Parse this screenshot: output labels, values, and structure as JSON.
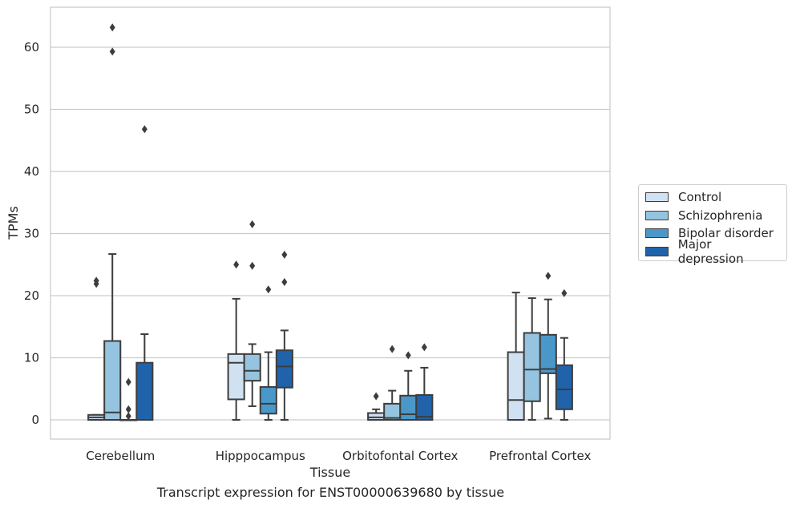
{
  "chart_data": {
    "type": "box",
    "title": "Transcript expression for ENST00000639680 by tissue",
    "xlabel": "Tissue",
    "ylabel": "TPMs",
    "ylim": [
      -3,
      66
    ],
    "yticks": [
      0,
      10,
      20,
      30,
      40,
      50,
      60
    ],
    "grid": "horizontal",
    "legend_position": "right",
    "categories": [
      "Cerebellum",
      "Hipppocampus",
      "Orbitofontal Cortex",
      "Prefrontal Cortex"
    ],
    "series": [
      {
        "name": "Control",
        "color": "#d0e1f2",
        "boxes": [
          {
            "min": 0.0,
            "q1": 0.0,
            "median": 0.4,
            "q3": 0.8,
            "max": 0.8,
            "outliers": [
              22.4,
              21.9
            ]
          },
          {
            "min": 0.0,
            "q1": 3.3,
            "median": 9.2,
            "q3": 10.6,
            "max": 19.5,
            "outliers": [
              25.0
            ]
          },
          {
            "min": 0.0,
            "q1": 0.0,
            "median": 0.4,
            "q3": 1.1,
            "max": 1.7,
            "outliers": [
              3.8
            ]
          },
          {
            "min": 0.0,
            "q1": 0.0,
            "median": 3.2,
            "q3": 10.9,
            "max": 20.5,
            "outliers": []
          }
        ]
      },
      {
        "name": "Schizophrenia",
        "color": "#94c4df",
        "boxes": [
          {
            "min": 0.0,
            "q1": 0.0,
            "median": 1.2,
            "q3": 12.7,
            "max": 26.7,
            "outliers": [
              63.2,
              59.3
            ]
          },
          {
            "min": 2.2,
            "q1": 6.3,
            "median": 7.9,
            "q3": 10.6,
            "max": 12.2,
            "outliers": [
              31.5,
              24.8
            ]
          },
          {
            "min": 0.0,
            "q1": 0.0,
            "median": 0.3,
            "q3": 2.6,
            "max": 4.7,
            "outliers": [
              11.4
            ]
          },
          {
            "min": 0.0,
            "q1": 3.0,
            "median": 8.1,
            "q3": 14.0,
            "max": 19.6,
            "outliers": []
          }
        ]
      },
      {
        "name": "Bipolar disorder",
        "color": "#4a98c9",
        "boxes": [
          {
            "min": 0.0,
            "q1": 0.0,
            "median": 0.0,
            "q3": 0.0,
            "max": 0.0,
            "outliers": [
              6.1,
              1.7,
              0.6
            ]
          },
          {
            "min": 0.0,
            "q1": 1.0,
            "median": 2.6,
            "q3": 5.3,
            "max": 10.9,
            "outliers": [
              21.0
            ]
          },
          {
            "min": 0.0,
            "q1": 0.0,
            "median": 0.9,
            "q3": 3.9,
            "max": 7.9,
            "outliers": [
              10.4
            ]
          },
          {
            "min": 0.2,
            "q1": 7.5,
            "median": 8.2,
            "q3": 13.7,
            "max": 19.4,
            "outliers": [
              23.2
            ]
          }
        ]
      },
      {
        "name": "Major depression",
        "color": "#2163aa",
        "boxes": [
          {
            "min": 0.0,
            "q1": 0.0,
            "median": 0.0,
            "q3": 9.2,
            "max": 13.8,
            "outliers": [
              46.8
            ]
          },
          {
            "min": 0.0,
            "q1": 5.2,
            "median": 8.6,
            "q3": 11.2,
            "max": 14.4,
            "outliers": [
              26.6,
              22.2
            ]
          },
          {
            "min": 0.0,
            "q1": 0.0,
            "median": 0.5,
            "q3": 4.0,
            "max": 8.4,
            "outliers": [
              11.7
            ]
          },
          {
            "min": 0.0,
            "q1": 1.7,
            "median": 4.9,
            "q3": 8.8,
            "max": 13.2,
            "outliers": [
              20.4
            ]
          }
        ]
      }
    ]
  }
}
